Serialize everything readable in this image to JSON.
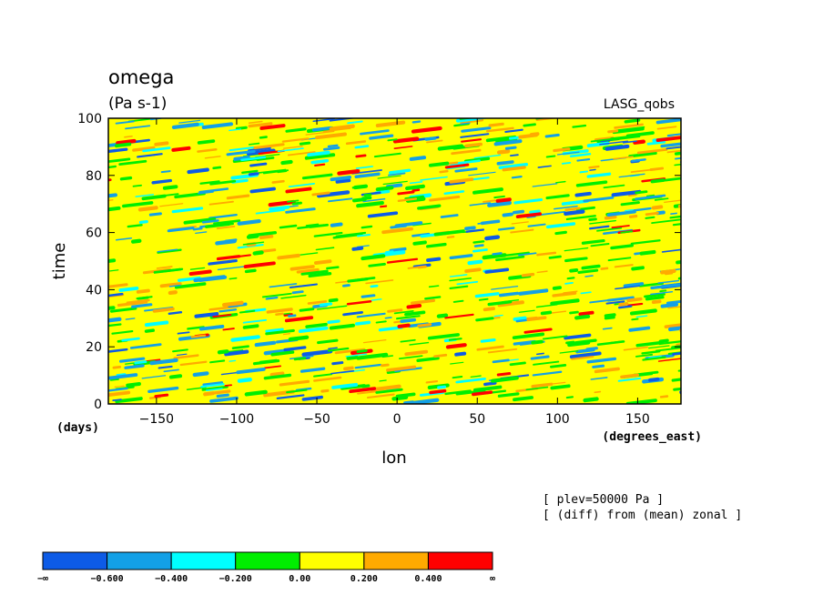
{
  "chart_data": {
    "type": "heatmap",
    "title": "omega",
    "units": "(Pa s-1)",
    "source_label": "LASG_qobs",
    "xlabel": "lon",
    "xunits": "(degrees_east)",
    "ylabel": "time",
    "yunits": "(days)",
    "xlim": [
      -180,
      177
    ],
    "ylim": [
      0,
      100
    ],
    "xticks": [
      -150,
      -100,
      -50,
      0,
      50,
      100,
      150
    ],
    "xtick_labels": [
      "−150",
      "−100",
      "−50",
      "0",
      "50",
      "100",
      "150"
    ],
    "yticks": [
      0,
      20,
      40,
      60,
      80,
      100
    ],
    "ytick_labels": [
      "0",
      "20",
      "40",
      "60",
      "80",
      "100"
    ],
    "notes": [
      "[ plev=50000 Pa ]",
      "[ (diff) from (mean) zonal ]"
    ],
    "colorbar": {
      "colors": [
        "#0d5be6",
        "#13a0e6",
        "#00ffff",
        "#00ee00",
        "#ffff00",
        "#ffaa00",
        "#ff0000"
      ],
      "labels": [
        "−∞",
        "−0.600",
        "−0.400",
        "−0.200",
        "0.00",
        "0.200",
        "0.400",
        "∞"
      ]
    }
  }
}
